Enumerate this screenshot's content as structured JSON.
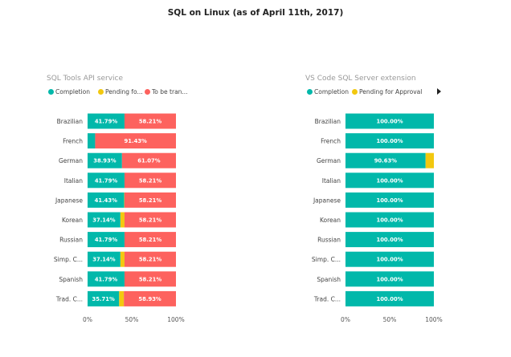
{
  "page": {
    "title": "SQL on Linux (as of April 11th, 2017)"
  },
  "chart_data": [
    {
      "type": "bar",
      "orientation": "horizontal",
      "stacked": true,
      "title": "SQL Tools API service",
      "legend_position": "top-left",
      "categories": [
        "Brazilian",
        "French",
        "German",
        "Italian",
        "Japanese",
        "Korean",
        "Russian",
        "Simp. C...",
        "Spanish",
        "Trad. C..."
      ],
      "series": [
        {
          "name": "Completion",
          "legend_label": "Completion",
          "color": "#01B8AA",
          "values": [
            41.79,
            8.57,
            38.93,
            41.79,
            41.43,
            37.14,
            41.79,
            37.14,
            41.79,
            35.71
          ],
          "labels": [
            "41.79%",
            "",
            "38.93%",
            "41.79%",
            "41.43%",
            "37.14%",
            "41.79%",
            "37.14%",
            "41.79%",
            "35.71%"
          ]
        },
        {
          "name": "Pending for Approval",
          "legend_label": "Pending fo...",
          "color": "#F2C80F",
          "values": [
            0,
            0,
            0,
            0,
            0.36,
            4.65,
            0,
            4.65,
            0,
            5.36
          ],
          "labels": [
            "",
            "",
            "",
            "",
            "",
            "",
            "",
            "",
            "",
            ""
          ]
        },
        {
          "name": "To be translated",
          "legend_label": "To be tran...",
          "color": "#FD625E",
          "values": [
            58.21,
            91.43,
            61.07,
            58.21,
            58.21,
            58.21,
            58.21,
            58.21,
            58.21,
            58.93
          ],
          "labels": [
            "58.21%",
            "91.43%",
            "61.07%",
            "58.21%",
            "58.21%",
            "58.21%",
            "58.21%",
            "58.21%",
            "58.21%",
            "58.93%"
          ]
        }
      ],
      "xlim": [
        0,
        100
      ],
      "x_ticks": [
        "0%",
        "50%",
        "100%"
      ],
      "grid": false
    },
    {
      "type": "bar",
      "orientation": "horizontal",
      "stacked": true,
      "title": "VS Code SQL Server extension",
      "legend_position": "top-left",
      "legend_has_more_arrow": true,
      "categories": [
        "Brazilian",
        "French",
        "German",
        "Italian",
        "Japanese",
        "Korean",
        "Russian",
        "Simp. C...",
        "Spanish",
        "Trad. C..."
      ],
      "series": [
        {
          "name": "Completion",
          "legend_label": "Completion",
          "color": "#01B8AA",
          "values": [
            100,
            100,
            90.63,
            100,
            100,
            100,
            100,
            100,
            100,
            100
          ],
          "labels": [
            "100.00%",
            "100.00%",
            "90.63%",
            "100.00%",
            "100.00%",
            "100.00%",
            "100.00%",
            "100.00%",
            "100.00%",
            "100.00%"
          ]
        },
        {
          "name": "Pending for Approval",
          "legend_label": "Pending for Approval",
          "color": "#F2C80F",
          "values": [
            0,
            0,
            9.37,
            0,
            0,
            0,
            0,
            0,
            0,
            0
          ],
          "labels": [
            "",
            "",
            "",
            "",
            "",
            "",
            "",
            "",
            "",
            ""
          ]
        }
      ],
      "xlim": [
        0,
        100
      ],
      "x_ticks": [
        "0%",
        "50%",
        "100%"
      ],
      "grid": false
    }
  ]
}
